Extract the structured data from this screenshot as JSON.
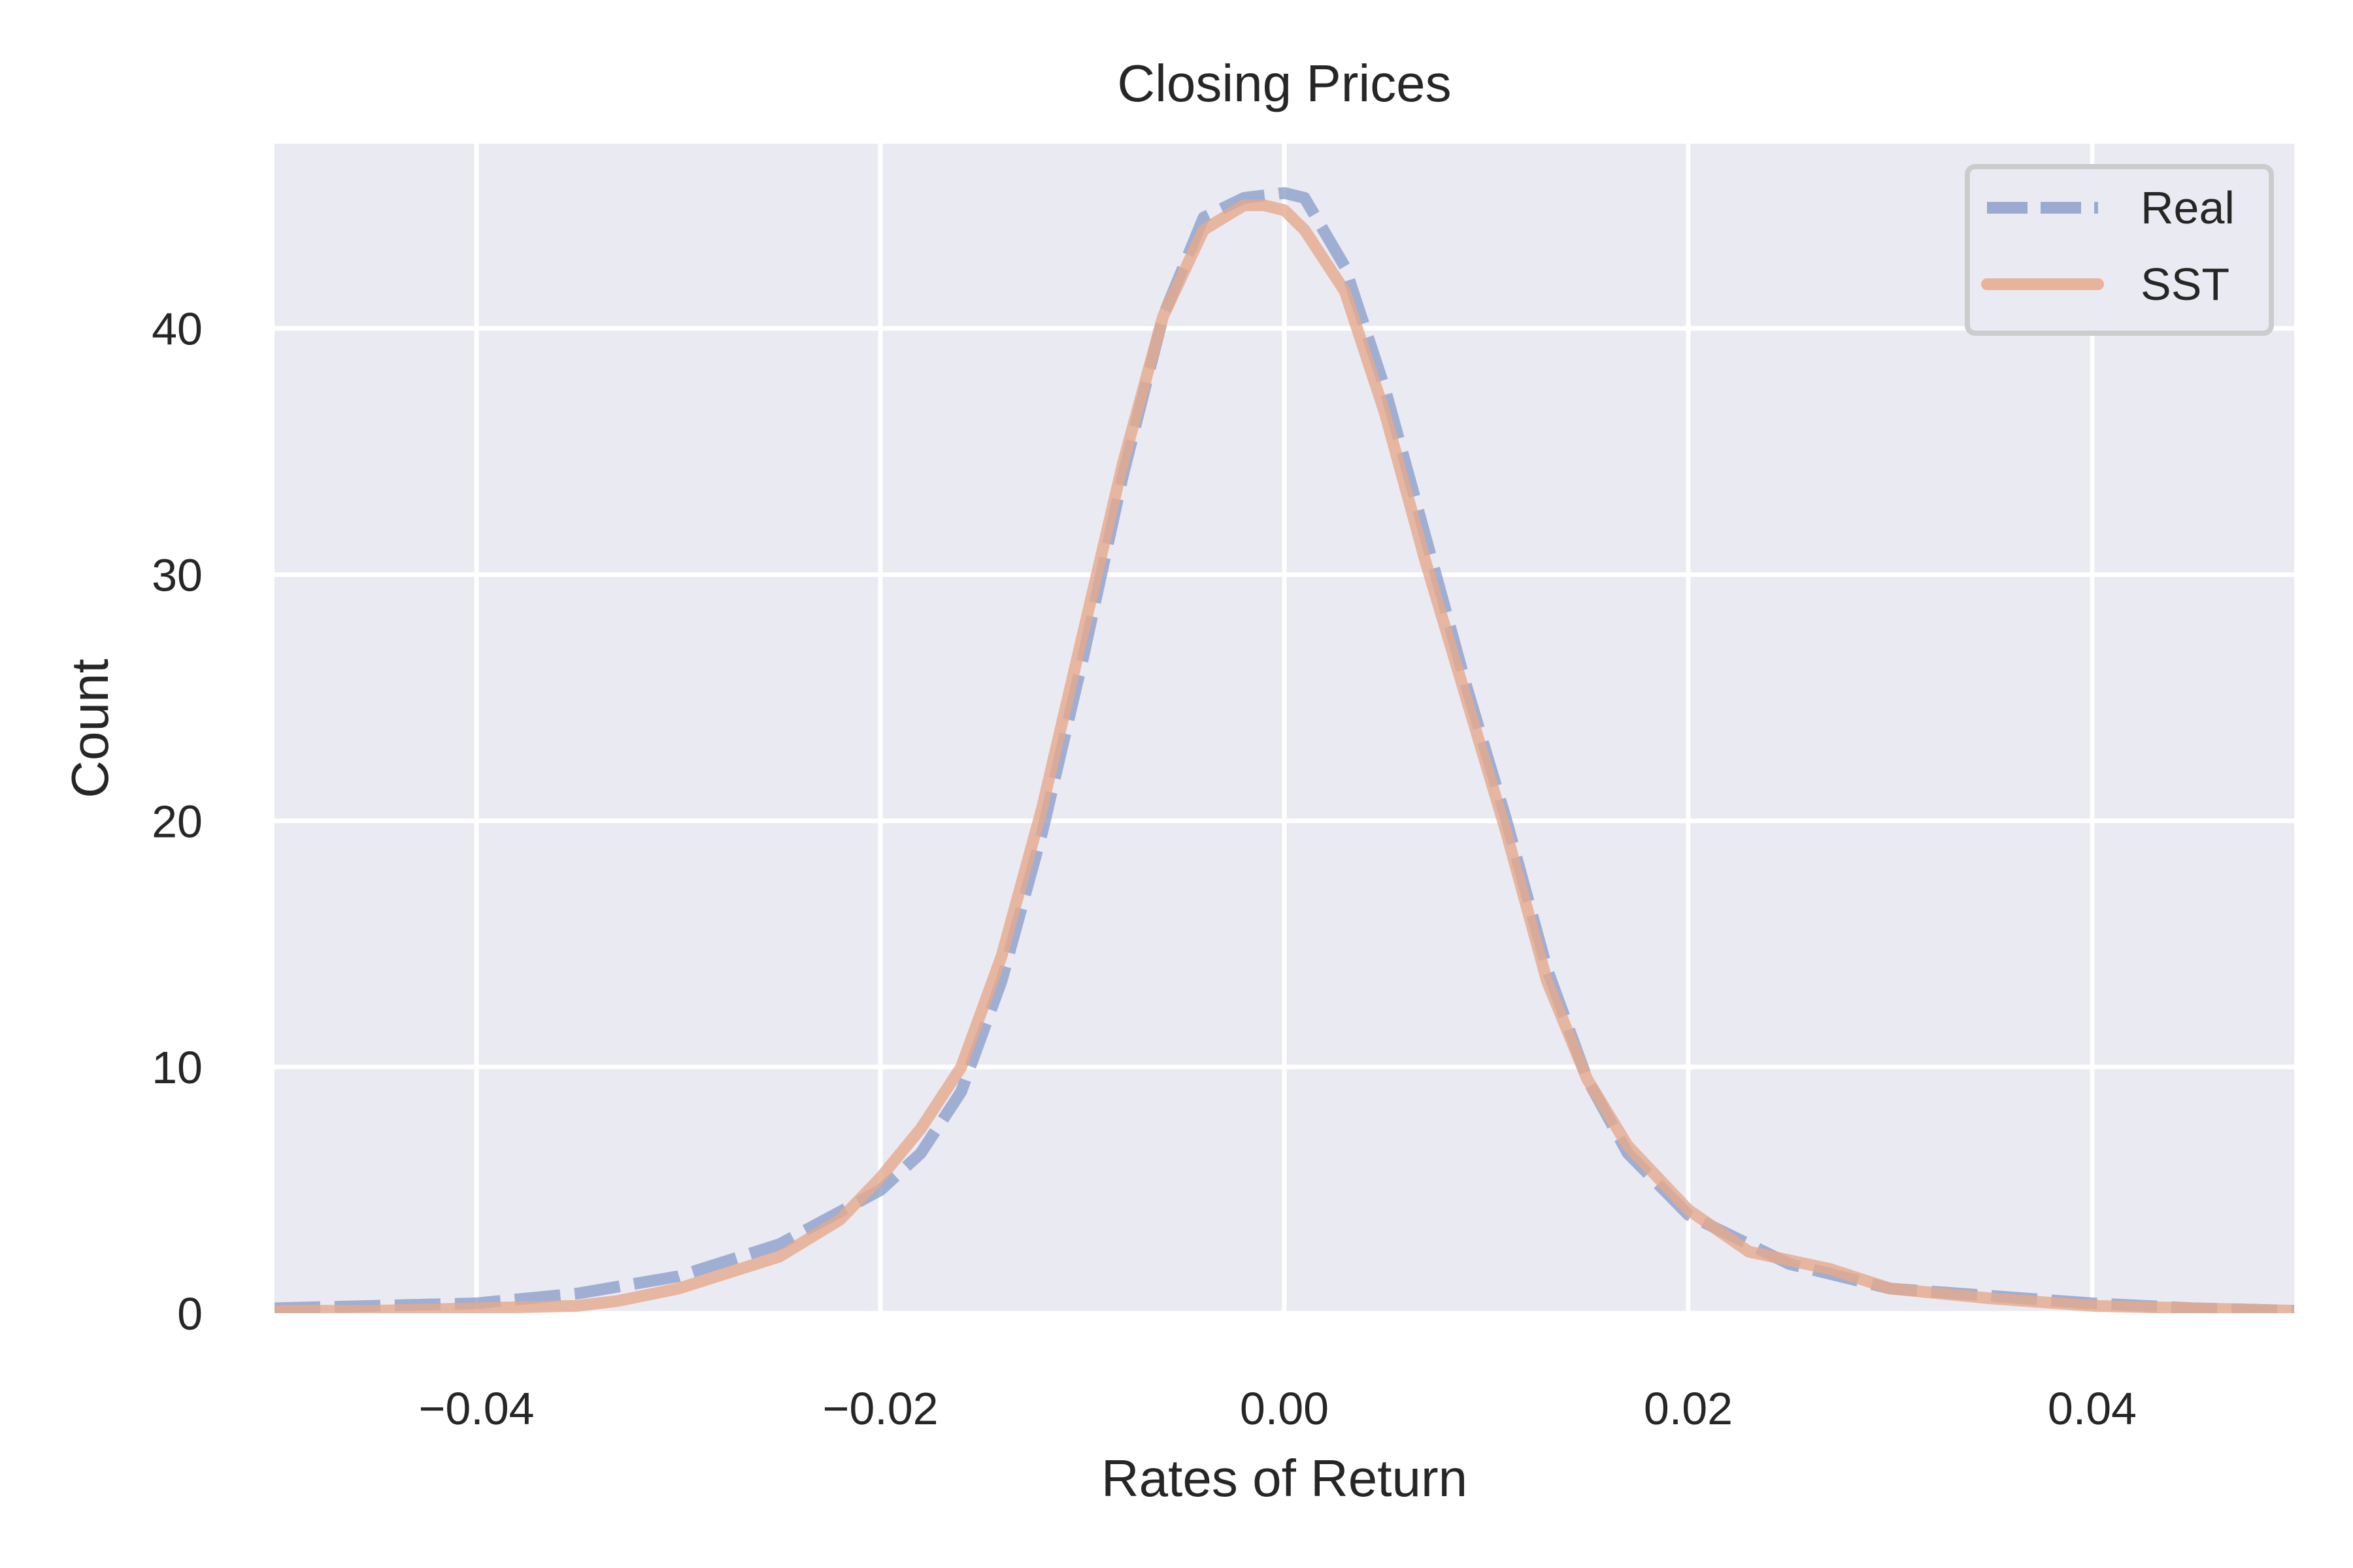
{
  "chart_data": {
    "type": "line",
    "title": "Closing Prices",
    "xlabel": "Rates of Return",
    "ylabel": "Count",
    "xlim": [
      -0.05,
      0.05
    ],
    "ylim": [
      0,
      47.5
    ],
    "x_ticks": [
      -0.04,
      -0.02,
      0.0,
      0.02,
      0.04
    ],
    "x_tick_labels": [
      "−0.04",
      "−0.02",
      "0.00",
      "0.02",
      "0.04"
    ],
    "y_ticks": [
      0,
      10,
      20,
      30,
      40
    ],
    "y_tick_labels": [
      "0",
      "10",
      "20",
      "30",
      "40"
    ],
    "grid": true,
    "legend_position": "top-right",
    "colors": {
      "background": "#eaeaf2",
      "grid": "#ffffff",
      "real": "#8c9fcb",
      "sst": "#e5a98c"
    },
    "series": [
      {
        "name": "Real",
        "style": "dashed",
        "x": [
          -0.05,
          -0.045,
          -0.04,
          -0.035,
          -0.03,
          -0.025,
          -0.02,
          -0.018,
          -0.016,
          -0.014,
          -0.012,
          -0.01,
          -0.008,
          -0.006,
          -0.004,
          -0.002,
          0.0,
          0.001,
          0.003,
          0.005,
          0.007,
          0.009,
          0.011,
          0.013,
          0.015,
          0.017,
          0.02,
          0.025,
          0.03,
          0.035,
          0.04,
          0.045,
          0.05
        ],
        "y": [
          0.2,
          0.3,
          0.4,
          0.8,
          1.5,
          2.8,
          5.0,
          6.5,
          9.0,
          13.5,
          19.5,
          26.5,
          34.0,
          40.5,
          44.5,
          45.3,
          45.5,
          45.3,
          42.5,
          37.5,
          31.5,
          25.5,
          20.0,
          14.0,
          9.5,
          6.5,
          4.0,
          2.0,
          1.0,
          0.7,
          0.4,
          0.2,
          0.1
        ]
      },
      {
        "name": "SST",
        "style": "solid",
        "x": [
          -0.05,
          -0.045,
          -0.04,
          -0.035,
          -0.033,
          -0.03,
          -0.025,
          -0.022,
          -0.02,
          -0.018,
          -0.016,
          -0.014,
          -0.012,
          -0.01,
          -0.008,
          -0.006,
          -0.004,
          -0.002,
          -0.001,
          0.0,
          0.001,
          0.003,
          0.005,
          0.007,
          0.009,
          0.011,
          0.013,
          0.015,
          0.017,
          0.02,
          0.023,
          0.027,
          0.03,
          0.035,
          0.04,
          0.045,
          0.05
        ],
        "y": [
          0.1,
          0.1,
          0.2,
          0.3,
          0.5,
          1.0,
          2.3,
          3.8,
          5.5,
          7.5,
          10.0,
          14.5,
          20.5,
          27.5,
          34.5,
          40.5,
          44.0,
          45.0,
          45.0,
          44.8,
          44.0,
          41.5,
          36.5,
          30.5,
          25.0,
          19.5,
          13.5,
          9.5,
          6.8,
          4.2,
          2.5,
          1.8,
          1.0,
          0.6,
          0.3,
          0.2,
          0.1
        ]
      }
    ]
  }
}
